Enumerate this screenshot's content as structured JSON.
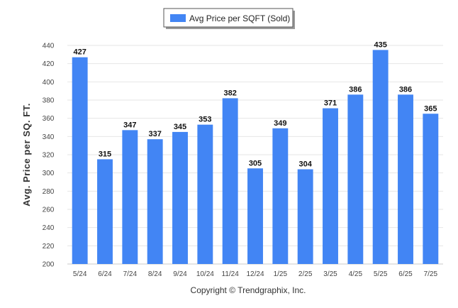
{
  "chart_data": {
    "type": "bar",
    "title": "",
    "xlabel": "",
    "ylabel": "Avg. Price per SQ. FT.",
    "ylim": [
      200,
      440
    ],
    "yticks": [
      200,
      220,
      240,
      260,
      280,
      300,
      320,
      340,
      360,
      380,
      400,
      420,
      440
    ],
    "grid": true,
    "legend_position": "top-center",
    "categories": [
      "5/24",
      "6/24",
      "7/24",
      "8/24",
      "9/24",
      "10/24",
      "11/24",
      "12/24",
      "1/25",
      "2/25",
      "3/25",
      "4/25",
      "5/25",
      "6/25",
      "7/25"
    ],
    "series": [
      {
        "name": "Avg Price per SQFT (Sold)",
        "color": "#4285f4",
        "values": [
          427,
          315,
          347,
          337,
          345,
          353,
          382,
          305,
          349,
          304,
          371,
          386,
          435,
          386,
          365
        ]
      }
    ]
  },
  "footer": {
    "copyright": "Copyright © Trendgraphix, Inc."
  }
}
